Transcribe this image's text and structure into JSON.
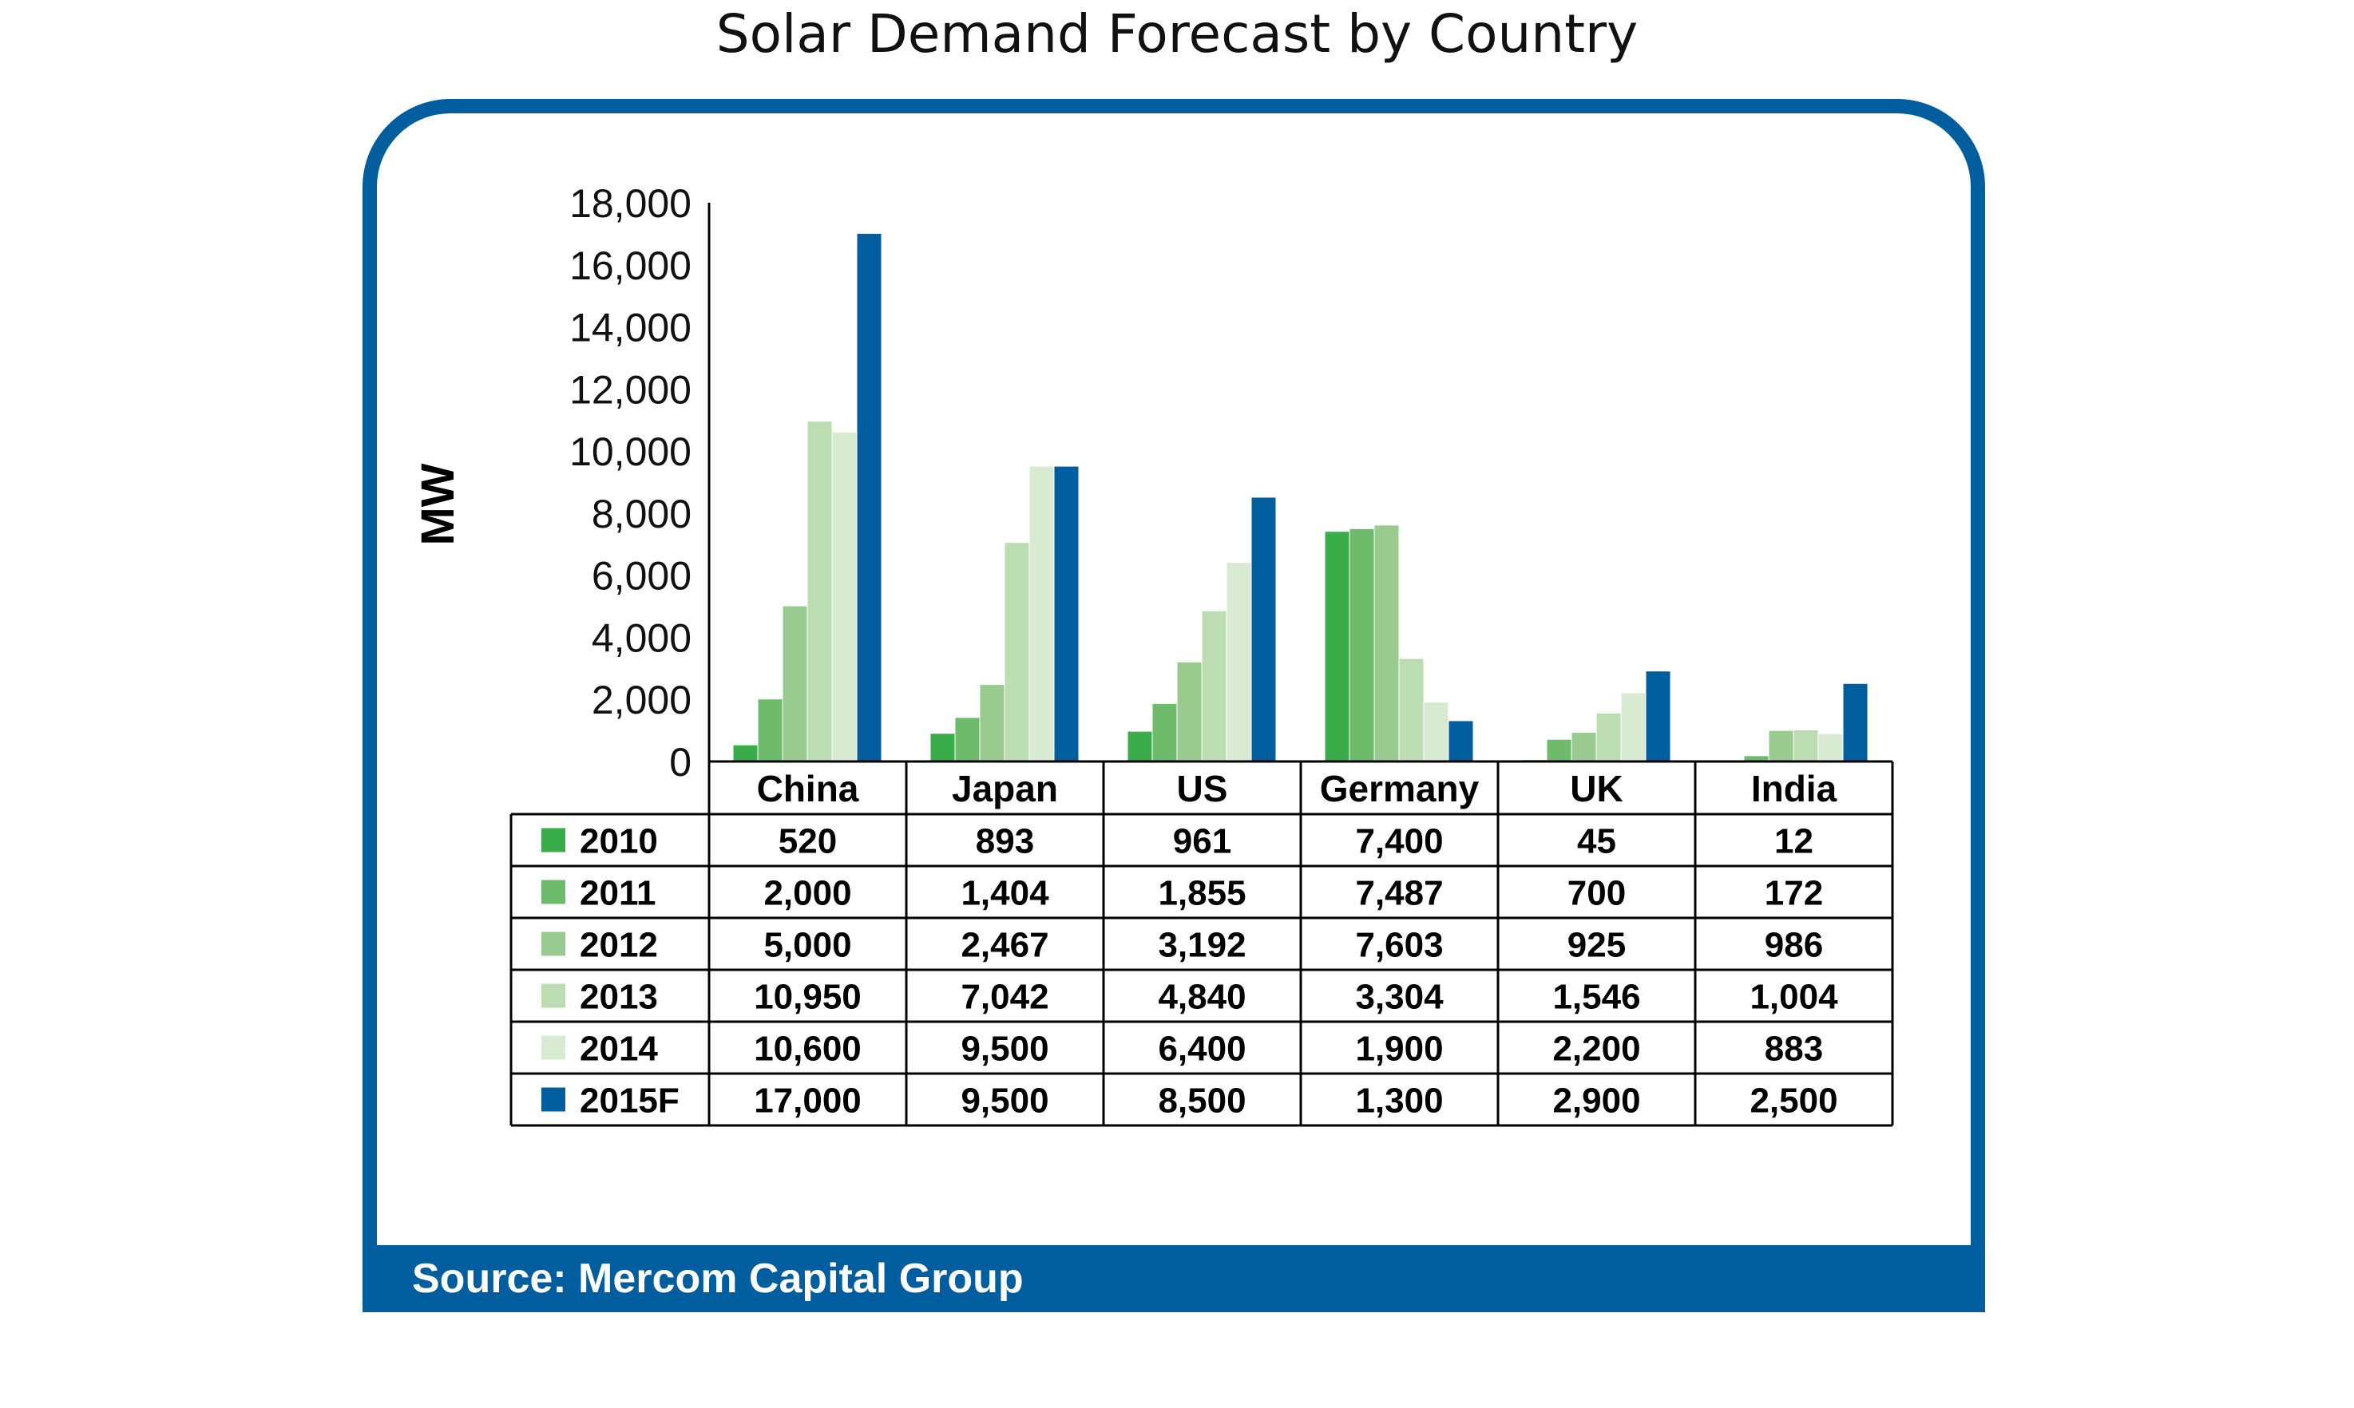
{
  "chart_data": {
    "type": "bar",
    "title": "Solar Demand Forecast by Country",
    "ylabel": "MW",
    "xlabel": "",
    "ylim": [
      0,
      18000
    ],
    "yticks": [
      "0",
      "2,000",
      "4,000",
      "6,000",
      "8,000",
      "10,000",
      "12,000",
      "14,000",
      "16,000",
      "18,000"
    ],
    "categories": [
      "China",
      "Japan",
      "US",
      "Germany",
      "UK",
      "India"
    ],
    "series": [
      {
        "name": "2010",
        "color": "#3aac4a",
        "values": [
          520,
          893,
          961,
          7400,
          45,
          12
        ],
        "labels": [
          "520",
          "893",
          "961",
          "7,400",
          "45",
          "12"
        ]
      },
      {
        "name": "2011",
        "color": "#6dbb6b",
        "values": [
          2000,
          1404,
          1855,
          7487,
          700,
          172
        ],
        "labels": [
          "2,000",
          "1,404",
          "1,855",
          "7,487",
          "700",
          "172"
        ]
      },
      {
        "name": "2012",
        "color": "#99ca8f",
        "values": [
          5000,
          2467,
          3192,
          7603,
          925,
          986
        ],
        "labels": [
          "5,000",
          "2,467",
          "3,192",
          "7,603",
          "925",
          "986"
        ]
      },
      {
        "name": "2013",
        "color": "#bcdcb1",
        "values": [
          10950,
          7042,
          4840,
          3304,
          1546,
          1004
        ],
        "labels": [
          "10,950",
          "7,042",
          "4,840",
          "3,304",
          "1,546",
          "1,004"
        ]
      },
      {
        "name": "2014",
        "color": "#d8ebd2",
        "values": [
          10600,
          9500,
          6400,
          1900,
          2200,
          883
        ],
        "labels": [
          "10,600",
          "9,500",
          "6,400",
          "1,900",
          "2,200",
          "883"
        ]
      },
      {
        "name": "2015F",
        "color": "#005d9e",
        "values": [
          17000,
          9500,
          8500,
          1300,
          2900,
          2500
        ],
        "labels": [
          "17,000",
          "9,500",
          "8,500",
          "1,300",
          "2,900",
          "2,500"
        ]
      }
    ],
    "legend": "table-left"
  },
  "source": "Source: Mercom Capital Group"
}
